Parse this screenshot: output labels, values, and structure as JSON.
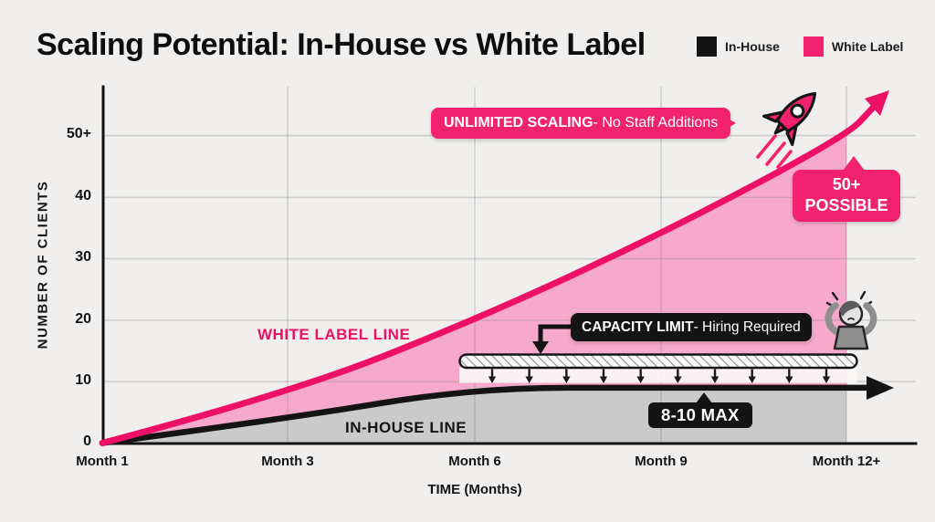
{
  "page": {
    "background": "#f0efed"
  },
  "header": {
    "title": "Scaling Potential: In-House vs White Label",
    "legend": [
      {
        "label": "In-House",
        "color": "#141414"
      },
      {
        "label": "White Label",
        "color": "#f3226e"
      }
    ]
  },
  "chart_data": {
    "type": "area",
    "title": "Scaling Potential: In-House vs White Label",
    "xlabel": "TIME (Months)",
    "ylabel": "NUMBER OF CLIENTS",
    "x_ticks": [
      "Month 1",
      "Month 3",
      "Month 6",
      "Month 9",
      "Month 12+"
    ],
    "y_ticks": [
      "0",
      "10",
      "20",
      "30",
      "40",
      "50+"
    ],
    "ylim": [
      0,
      55
    ],
    "grid": true,
    "legend_position": "top-right",
    "series": [
      {
        "name": "In-House",
        "line_color": "#141414",
        "fill_color": "#cacaca",
        "values": [
          0,
          4,
          9,
          9,
          9
        ]
      },
      {
        "name": "White Label",
        "line_color": "#ee1066",
        "fill_color": "#f6a9ca",
        "values": [
          0,
          8,
          20,
          34,
          50
        ]
      }
    ]
  },
  "annotations": {
    "unlimited_banner": {
      "bold": "UNLIMITED SCALING",
      "rest": " - No Staff Additions"
    },
    "possible_badge": {
      "line1": "50+",
      "line2": "POSSIBLE"
    },
    "capacity_banner": {
      "bold": "CAPACITY LIMIT",
      "rest": " - Hiring Required"
    },
    "max_badge": "8-10 MAX",
    "white_label_line_label": "WHITE LABEL LINE",
    "in_house_line_label": "IN-HOUSE LINE",
    "capacity_arrows_count": 10,
    "icons": {
      "rocket": "rocket-icon",
      "stressed_person": "stressed-person-icon"
    }
  }
}
